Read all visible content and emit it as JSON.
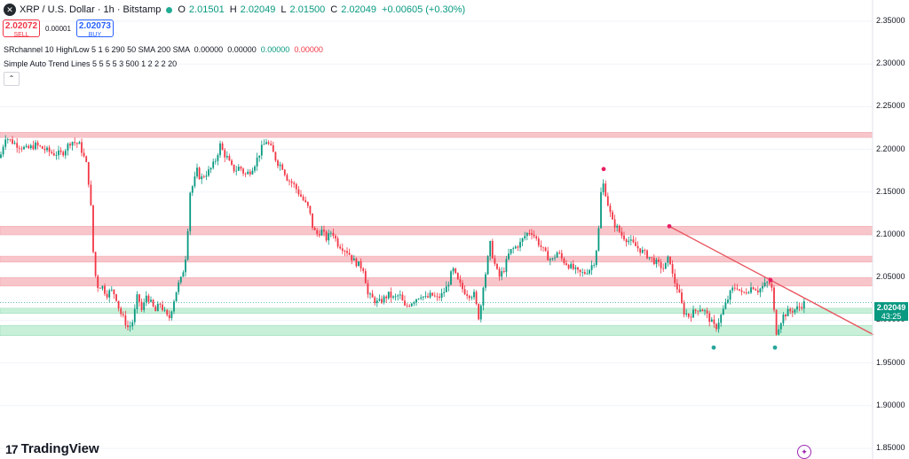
{
  "header": {
    "title": "XRP / U.S. Dollar · 1h · Bitstamp",
    "symbol_icon": "xrp-logo-icon",
    "ohlc": [
      {
        "label": "O",
        "value": "2.01501"
      },
      {
        "label": "H",
        "value": "2.02049"
      },
      {
        "label": "L",
        "value": "2.01500"
      },
      {
        "label": "C",
        "value": "2.02049"
      }
    ],
    "change": "+0.00605 (+0.30%)"
  },
  "trade": {
    "sell_price": "2.02072",
    "sell_label": "SELL",
    "spread": "0.00001",
    "buy_price": "2.02073",
    "buy_label": "BUY"
  },
  "indicators": [
    {
      "name": "SRchannel 10 High/Low 5 1 6 290 50 SMA 200 SMA",
      "values": [
        "0.00000",
        "0.00000",
        "0.00000",
        "0.00000"
      ]
    },
    {
      "name": "Simple Auto Trend Lines 5 5 5 5 3 500 1 2 2 2 20",
      "values": []
    }
  ],
  "collapse_icon": "chevron-up-icon",
  "collapse_label": "⌃",
  "current_price": {
    "value": "2.02049",
    "countdown": "43:25"
  },
  "brand": {
    "name": "TradingView",
    "icon": "tradingview-logo-icon",
    "logo": "17"
  },
  "colors": {
    "up": "#089981",
    "down": "#f23645",
    "resistance": "#f7c5ca",
    "support": "#c8f0d8",
    "trend": "#e8555f"
  },
  "chart_data": {
    "type": "candlestick",
    "symbol": "XRP / U.S. Dollar",
    "interval": "1h",
    "exchange": "Bitstamp",
    "y_axis": {
      "position": "right",
      "ticks": [
        "2.35000",
        "2.30000",
        "2.25000",
        "2.20000",
        "2.15000",
        "2.10000",
        "2.05000",
        "2.00000",
        "1.95000",
        "1.90000",
        "1.85000"
      ],
      "range": [
        1.85,
        2.36
      ]
    },
    "close_path": [
      [
        0,
        2.19
      ],
      [
        6,
        2.215
      ],
      [
        12,
        2.21
      ],
      [
        20,
        2.205
      ],
      [
        30,
        2.2
      ],
      [
        40,
        2.205
      ],
      [
        50,
        2.2
      ],
      [
        60,
        2.195
      ],
      [
        70,
        2.195
      ],
      [
        80,
        2.21
      ],
      [
        90,
        2.205
      ],
      [
        98,
        2.18
      ],
      [
        102,
        2.14
      ],
      [
        106,
        2.06
      ],
      [
        110,
        2.04
      ],
      [
        115,
        2.04
      ],
      [
        120,
        2.03
      ],
      [
        125,
        2.035
      ],
      [
        130,
        2.03
      ],
      [
        135,
        2.01
      ],
      [
        140,
        2.0
      ],
      [
        145,
        1.99
      ],
      [
        150,
        2.0
      ],
      [
        155,
        2.03
      ],
      [
        160,
        2.01
      ],
      [
        165,
        2.03
      ],
      [
        170,
        2.02
      ],
      [
        175,
        2.01
      ],
      [
        180,
        2.02
      ],
      [
        185,
        2.01
      ],
      [
        190,
        2.0
      ],
      [
        195,
        2.02
      ],
      [
        200,
        2.04
      ],
      [
        205,
        2.05
      ],
      [
        210,
        2.08
      ],
      [
        214,
        2.15
      ],
      [
        218,
        2.16
      ],
      [
        222,
        2.175
      ],
      [
        226,
        2.165
      ],
      [
        230,
        2.17
      ],
      [
        236,
        2.175
      ],
      [
        242,
        2.185
      ],
      [
        248,
        2.205
      ],
      [
        252,
        2.195
      ],
      [
        256,
        2.19
      ],
      [
        260,
        2.18
      ],
      [
        265,
        2.175
      ],
      [
        270,
        2.18
      ],
      [
        276,
        2.17
      ],
      [
        282,
        2.175
      ],
      [
        288,
        2.185
      ],
      [
        294,
        2.2
      ],
      [
        300,
        2.21
      ],
      [
        306,
        2.2
      ],
      [
        312,
        2.185
      ],
      [
        318,
        2.18
      ],
      [
        324,
        2.165
      ],
      [
        330,
        2.16
      ],
      [
        336,
        2.15
      ],
      [
        342,
        2.14
      ],
      [
        348,
        2.13
      ],
      [
        352,
        2.11
      ],
      [
        356,
        2.1
      ],
      [
        362,
        2.105
      ],
      [
        368,
        2.095
      ],
      [
        374,
        2.105
      ],
      [
        380,
        2.09
      ],
      [
        386,
        2.085
      ],
      [
        392,
        2.08
      ],
      [
        398,
        2.07
      ],
      [
        404,
        2.065
      ],
      [
        410,
        2.06
      ],
      [
        414,
        2.03
      ],
      [
        420,
        2.025
      ],
      [
        426,
        2.02
      ],
      [
        432,
        2.025
      ],
      [
        438,
        2.03
      ],
      [
        444,
        2.025
      ],
      [
        450,
        2.03
      ],
      [
        456,
        2.015
      ],
      [
        462,
        2.02
      ],
      [
        468,
        2.025
      ],
      [
        474,
        2.03
      ],
      [
        480,
        2.025
      ],
      [
        486,
        2.03
      ],
      [
        492,
        2.025
      ],
      [
        498,
        2.03
      ],
      [
        504,
        2.04
      ],
      [
        510,
        2.06
      ],
      [
        516,
        2.045
      ],
      [
        522,
        2.035
      ],
      [
        528,
        2.03
      ],
      [
        534,
        2.03
      ],
      [
        540,
        2.0
      ],
      [
        544,
        2.04
      ],
      [
        548,
        2.06
      ],
      [
        552,
        2.09
      ],
      [
        556,
        2.07
      ],
      [
        562,
        2.05
      ],
      [
        568,
        2.06
      ],
      [
        574,
        2.08
      ],
      [
        580,
        2.085
      ],
      [
        586,
        2.09
      ],
      [
        592,
        2.1
      ],
      [
        598,
        2.105
      ],
      [
        604,
        2.095
      ],
      [
        610,
        2.085
      ],
      [
        616,
        2.075
      ],
      [
        622,
        2.07
      ],
      [
        628,
        2.08
      ],
      [
        634,
        2.07
      ],
      [
        640,
        2.065
      ],
      [
        646,
        2.06
      ],
      [
        652,
        2.055
      ],
      [
        658,
        2.055
      ],
      [
        664,
        2.06
      ],
      [
        670,
        2.07
      ],
      [
        674,
        2.1
      ],
      [
        678,
        2.165
      ],
      [
        682,
        2.15
      ],
      [
        686,
        2.13
      ],
      [
        690,
        2.115
      ],
      [
        694,
        2.11
      ],
      [
        700,
        2.1
      ],
      [
        706,
        2.095
      ],
      [
        712,
        2.09
      ],
      [
        718,
        2.085
      ],
      [
        724,
        2.08
      ],
      [
        730,
        2.075
      ],
      [
        736,
        2.07
      ],
      [
        742,
        2.065
      ],
      [
        748,
        2.06
      ],
      [
        754,
        2.075
      ],
      [
        758,
        2.05
      ],
      [
        764,
        2.035
      ],
      [
        770,
        2.01
      ],
      [
        776,
        2.005
      ],
      [
        782,
        2.01
      ],
      [
        788,
        2.015
      ],
      [
        794,
        2.01
      ],
      [
        800,
        2.0
      ],
      [
        806,
        1.99
      ],
      [
        812,
        2.005
      ],
      [
        818,
        2.02
      ],
      [
        824,
        2.035
      ],
      [
        830,
        2.04
      ],
      [
        836,
        2.03
      ],
      [
        842,
        2.035
      ],
      [
        848,
        2.04
      ],
      [
        854,
        2.035
      ],
      [
        860,
        2.04
      ],
      [
        866,
        2.045
      ],
      [
        870,
        2.035
      ],
      [
        874,
        1.985
      ],
      [
        878,
        1.995
      ],
      [
        882,
        2.005
      ],
      [
        888,
        2.01
      ],
      [
        894,
        2.012
      ],
      [
        900,
        2.015
      ],
      [
        906,
        2.02
      ]
    ],
    "resistance_zones": [
      [
        2.214,
        2.22
      ],
      [
        2.1,
        2.11
      ],
      [
        2.068,
        2.075
      ],
      [
        2.04,
        2.05
      ]
    ],
    "support_zones": [
      [
        2.008,
        2.014
      ],
      [
        1.982,
        1.994
      ]
    ],
    "trend_line": {
      "from": {
        "x": 754,
        "y": 2.11
      },
      "to": {
        "x": 984,
        "y": 1.983
      }
    },
    "swing_markers": [
      {
        "x": 680,
        "y": 2.177,
        "kind": "high"
      },
      {
        "x": 754,
        "y": 2.11,
        "kind": "high"
      },
      {
        "x": 868,
        "y": 2.047,
        "kind": "high"
      },
      {
        "x": 804,
        "y": 1.968,
        "kind": "low"
      },
      {
        "x": 873,
        "y": 1.968,
        "kind": "low"
      }
    ]
  }
}
